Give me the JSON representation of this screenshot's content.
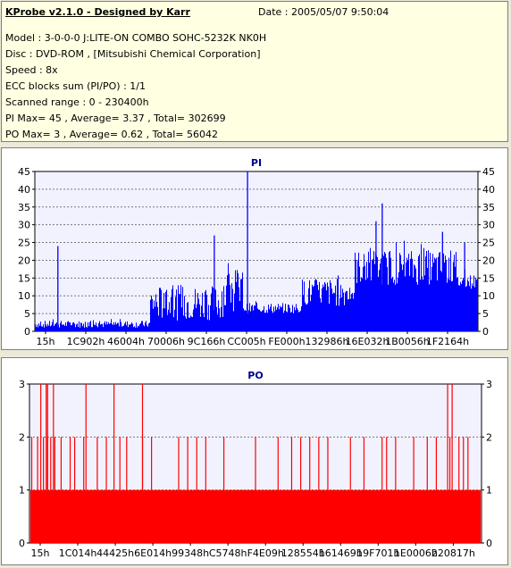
{
  "info": {
    "title": "KProbe v2.1.0 - Designed by Karr",
    "date": "Date : 2005/05/07 9:50:04",
    "model": "Model : 3-0-0-0 J:LITE-ON COMBO SOHC-5232K NK0H",
    "disc": "Disc : DVD-ROM ,  [Mitsubishi Chemical Corporation]",
    "speed": "Speed : 8x",
    "ecc": "ECC blocks sum (PI/PO) : 1/1",
    "range": "Scanned range : 0 - 230400h",
    "pi": "PI Max= 45 , Average= 3.37 , Total= 302699",
    "po": "PO Max= 3 , Average= 0.62 , Total= 56042"
  },
  "colors": {
    "pi": "#0000ff",
    "po": "#ff0000",
    "plot_bg": "#f2f2ff",
    "info_bg": "#ffffe1"
  },
  "chart_data": [
    {
      "type": "area",
      "title": "PI",
      "ylim": [
        0,
        45
      ],
      "yticks": [
        0,
        5,
        10,
        15,
        20,
        25,
        30,
        35,
        40,
        45
      ],
      "xlim": [
        0,
        230400
      ],
      "xtick_labels": [
        "15h",
        "1C902h",
        "46004h",
        "70006h",
        "9C166h",
        "CC005h",
        "FE000h",
        "132986h",
        "16E032h",
        "1B0056h",
        "1F2164h"
      ],
      "grid": true,
      "segments": [
        {
          "x0": 0,
          "x1": 0.26,
          "base": 2.0,
          "var": 1.0,
          "peak": 3.5
        },
        {
          "x0": 0.26,
          "x1": 0.42,
          "base": 8.0,
          "var": 5.0,
          "peak": 16
        },
        {
          "x0": 0.42,
          "x1": 0.47,
          "base": 11,
          "var": 7,
          "peak": 22
        },
        {
          "x0": 0.47,
          "x1": 0.6,
          "base": 6.5,
          "var": 1.5,
          "peak": 9
        },
        {
          "x0": 0.6,
          "x1": 0.72,
          "base": 11,
          "var": 4,
          "peak": 17
        },
        {
          "x0": 0.72,
          "x1": 0.8,
          "base": 18,
          "var": 5,
          "peak": 27
        },
        {
          "x0": 0.8,
          "x1": 0.95,
          "base": 18,
          "var": 5,
          "peak": 26
        },
        {
          "x0": 0.95,
          "x1": 1.0,
          "base": 14,
          "var": 2,
          "peak": 18
        }
      ],
      "spikes": [
        {
          "x": 0.052,
          "y": 24
        },
        {
          "x": 0.405,
          "y": 27
        },
        {
          "x": 0.48,
          "y": 45
        },
        {
          "x": 0.77,
          "y": 31
        },
        {
          "x": 0.784,
          "y": 36
        },
        {
          "x": 0.92,
          "y": 28
        },
        {
          "x": 0.97,
          "y": 25
        }
      ]
    },
    {
      "type": "bar",
      "title": "PO",
      "ylim": [
        0,
        3
      ],
      "yticks": [
        0,
        1,
        2,
        3
      ],
      "xlim": [
        0,
        230400
      ],
      "xtick_labels": [
        "15h",
        "1C014h",
        "44425h",
        "6E014h",
        "99348h",
        "C5748h",
        "F4E09h",
        "128554h",
        "161469h",
        "19F701h",
        "1E0006h",
        "220817h"
      ],
      "grid": true,
      "base": 1,
      "level2_x": [
        0.005,
        0.018,
        0.031,
        0.04,
        0.047,
        0.056,
        0.07,
        0.09,
        0.1,
        0.12,
        0.15,
        0.17,
        0.2,
        0.215,
        0.25,
        0.27,
        0.33,
        0.35,
        0.37,
        0.39,
        0.43,
        0.5,
        0.55,
        0.58,
        0.6,
        0.62,
        0.64,
        0.66,
        0.71,
        0.74,
        0.78,
        0.79,
        0.81,
        0.85,
        0.88,
        0.9,
        0.93,
        0.95,
        0.96,
        0.97
      ],
      "level3_x": [
        0.025,
        0.037,
        0.04,
        0.053,
        0.125,
        0.187,
        0.25,
        0.925,
        0.935
      ]
    }
  ]
}
